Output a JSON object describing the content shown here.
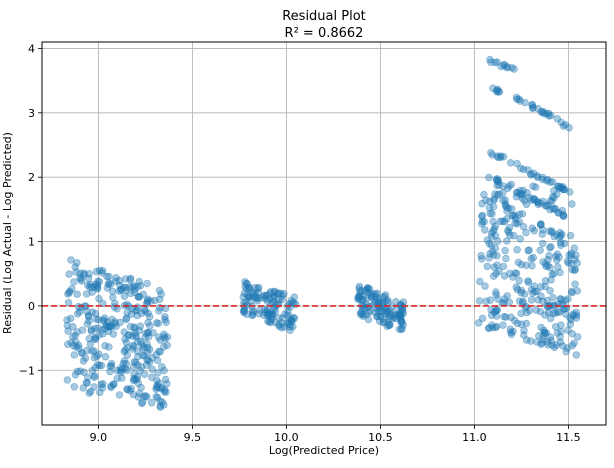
{
  "chart_data": {
    "type": "scatter",
    "title": "Residual Plot",
    "subtitle": "R² = 0.8662",
    "xlabel": "Log(Predicted Price)",
    "ylabel": "Residual (Log Actual - Log Predicted)",
    "xlim": [
      8.7,
      11.7
    ],
    "ylim": [
      -1.85,
      4.1
    ],
    "xticks": [
      9.0,
      9.5,
      10.0,
      10.5,
      11.0,
      11.5
    ],
    "xtick_labels": [
      "9.0",
      "9.5",
      "10.0",
      "10.5",
      "11.0",
      "11.5"
    ],
    "yticks": [
      -1,
      0,
      1,
      2,
      3,
      4
    ],
    "ytick_labels": [
      "−1",
      "0",
      "1",
      "2",
      "3",
      "4"
    ],
    "grid": true,
    "reference_line": {
      "y": 0,
      "style": "dashed",
      "color": "#d62728"
    },
    "point_color": "#1f77b4",
    "point_alpha": 0.4,
    "clusters": [
      {
        "x_range": [
          8.83,
          9.37
        ],
        "y_top_at_start": 0.75,
        "y_top_at_end": 0.25,
        "y_bottom_at_start": -1.3,
        "y_bottom_at_end": -1.6,
        "dense_bottom_at_start": -0.8,
        "dense_bottom_at_end": -1.2
      },
      {
        "x_range": [
          9.77,
          10.05
        ],
        "y_top_at_start": 0.43,
        "y_top_at_end": 0.15,
        "y_bottom_at_start": -0.12,
        "y_bottom_at_end": -0.42
      },
      {
        "x_range": [
          10.38,
          10.63
        ],
        "y_top_at_start": 0.35,
        "y_top_at_end": 0.08,
        "y_bottom_at_start": -0.15,
        "y_bottom_at_end": -0.42
      },
      {
        "x_range": [
          11.02,
          11.55
        ],
        "y_top_at_start": 1.9,
        "y_top_at_end": 1.0,
        "y_bottom_at_start": -0.3,
        "y_bottom_at_end": -0.78,
        "outlier_bands": [
          {
            "start": [
              11.07,
              3.82
            ],
            "end": [
              11.22,
              3.66
            ]
          },
          {
            "start": [
              11.22,
              3.25
            ],
            "end": [
              11.52,
              2.75
            ]
          },
          {
            "start": [
              11.1,
              3.37
            ],
            "end": [
              11.14,
              3.32
            ]
          },
          {
            "start": [
              11.08,
              2.4
            ],
            "end": [
              11.52,
              1.75
            ]
          },
          {
            "start": [
              11.08,
              2.0
            ],
            "end": [
              11.52,
              1.35
            ]
          }
        ]
      }
    ]
  }
}
